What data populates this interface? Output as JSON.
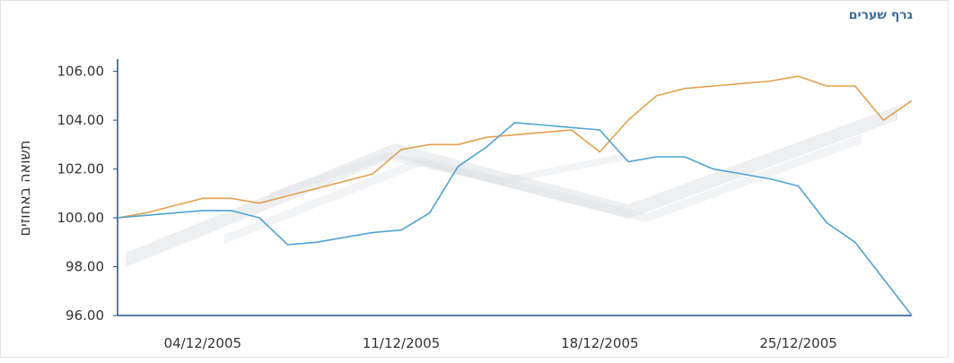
{
  "header": {
    "title": "גרף שערים"
  },
  "colors": {
    "series_orange": "#e3a14e",
    "series_blue": "#4fa3d3",
    "axis": "#1f4f8b",
    "watermark": "#dfe2e6"
  },
  "chart_data": {
    "type": "line",
    "title": "",
    "xlabel": "",
    "ylabel": "תשואה באחוזים",
    "ylim": [
      96,
      106.5
    ],
    "yticks": [
      96,
      98,
      100,
      102,
      104,
      106
    ],
    "ytick_labels": [
      "96.00",
      "98.00",
      "100.00",
      "102.00",
      "104.00",
      "106.00"
    ],
    "xticks": [
      "04/12/2005",
      "11/12/2005",
      "18/12/2005",
      "25/12/2005"
    ],
    "xtick_positions": [
      3,
      10,
      17,
      24
    ],
    "x": [
      0,
      1,
      2,
      3,
      4,
      5,
      6,
      7,
      8,
      9,
      10,
      11,
      12,
      13,
      14,
      15,
      16,
      17,
      18,
      19,
      20,
      21,
      22,
      23,
      24,
      25,
      26,
      27,
      28
    ],
    "grid": false,
    "legend": "none",
    "series": [
      {
        "color": "#e3a14e",
        "values": [
          100.0,
          100.2,
          100.5,
          100.8,
          100.8,
          100.6,
          100.9,
          101.2,
          101.5,
          101.8,
          102.8,
          103.0,
          103.0,
          103.3,
          103.4,
          103.5,
          103.6,
          102.7,
          104.0,
          105.0,
          105.3,
          105.4,
          105.5,
          105.6,
          105.8,
          105.4,
          105.4,
          104.0,
          104.8
        ]
      },
      {
        "color": "#4fa3d3",
        "values": [
          100.0,
          100.1,
          100.2,
          100.3,
          100.3,
          100.0,
          98.9,
          99.0,
          99.2,
          99.4,
          99.5,
          100.2,
          102.1,
          102.9,
          103.9,
          103.8,
          103.7,
          103.6,
          102.3,
          102.5,
          102.5,
          102.0,
          101.8,
          101.6,
          101.3,
          99.8,
          99.0,
          97.5,
          96.0
        ]
      }
    ]
  }
}
